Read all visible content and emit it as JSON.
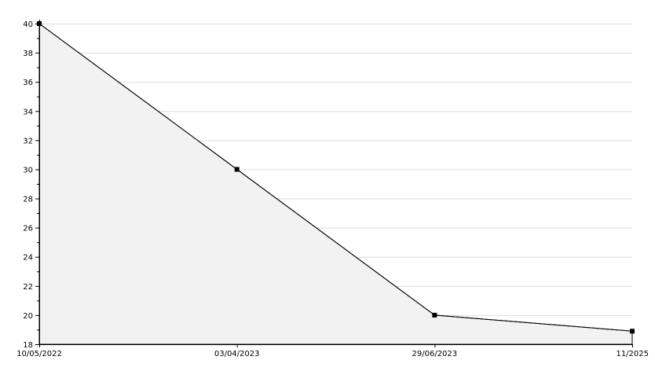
{
  "chart_data": {
    "type": "area",
    "categories": [
      "10/05/2022",
      "03/04/2023",
      "29/06/2023",
      "11/2025"
    ],
    "values": [
      40,
      30,
      20,
      18.9
    ],
    "title": "",
    "xlabel": "",
    "ylabel": "",
    "ylim": [
      18,
      40
    ],
    "yticks": [
      "18",
      "20",
      "22",
      "24",
      "26",
      "28",
      "30",
      "32",
      "34",
      "36",
      "38",
      "40"
    ],
    "grid": true,
    "colors": {
      "line": "#000000",
      "fill": "#f2f2f2",
      "grid": "#dddddd",
      "marker": "#000000"
    }
  }
}
